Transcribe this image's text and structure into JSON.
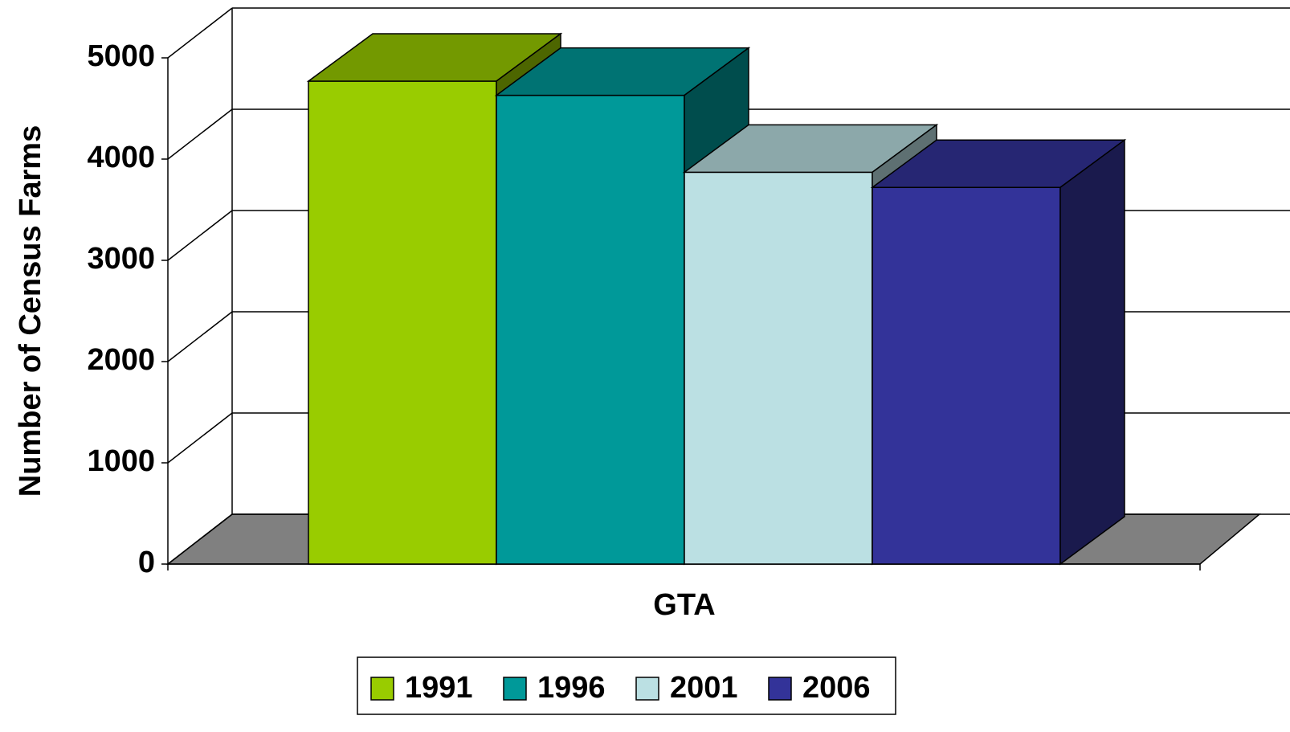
{
  "chart_data": {
    "type": "bar3d",
    "y_label": "Number of Census Farms",
    "categories": [
      "GTA"
    ],
    "series": [
      {
        "name": "1991",
        "color": "#99cc00",
        "values": [
          4770
        ]
      },
      {
        "name": "1996",
        "color": "#009999",
        "values": [
          4630
        ]
      },
      {
        "name": "2001",
        "color": "#bbe0e3",
        "values": [
          3870
        ]
      },
      {
        "name": "2006",
        "color": "#333399",
        "values": [
          3720
        ]
      }
    ],
    "ylim": [
      0,
      5000
    ],
    "yticks": [
      0,
      1000,
      2000,
      3000,
      4000,
      5000
    ],
    "grid": true,
    "legend": "bottom"
  }
}
